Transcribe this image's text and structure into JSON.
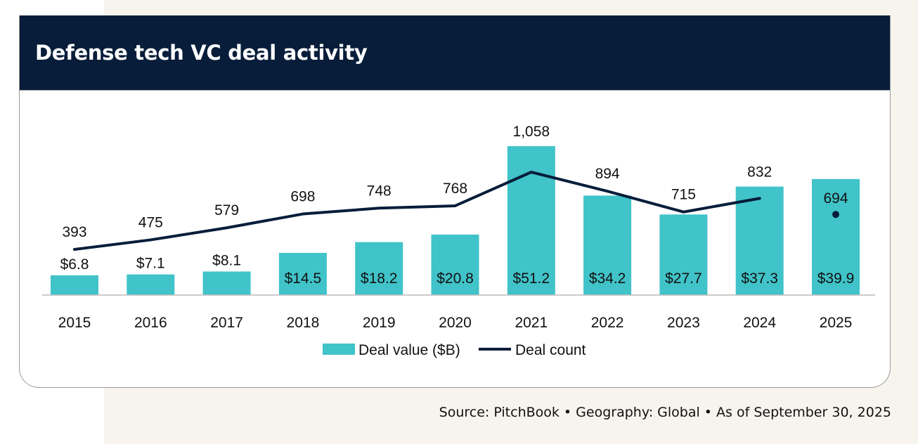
{
  "source_text": "Source: PitchBook  •  Geography: Global  •  As of September 30, 2025",
  "colors": {
    "bar": "#40C3C9",
    "line": "#071D3A",
    "header": "#071D3A",
    "background": "#F7F4EE"
  },
  "chart_data": {
    "type": "bar+line",
    "title": "Defense tech VC deal activity",
    "categories": [
      "2015",
      "2016",
      "2017",
      "2018",
      "2019",
      "2020",
      "2021",
      "2022",
      "2023",
      "2024",
      "2025"
    ],
    "series": [
      {
        "name": "Deal value ($B)",
        "type": "bar",
        "values": [
          6.8,
          7.1,
          8.1,
          14.5,
          18.2,
          20.8,
          51.2,
          34.2,
          27.7,
          37.3,
          39.9
        ],
        "labels": [
          "$6.8",
          "$7.1",
          "$8.1",
          "$14.5",
          "$18.2",
          "$20.8",
          "$51.2",
          "$34.2",
          "$27.7",
          "$37.3",
          "$39.9"
        ]
      },
      {
        "name": "Deal count",
        "type": "line",
        "values": [
          393,
          475,
          579,
          698,
          748,
          768,
          1058,
          894,
          715,
          832,
          694
        ],
        "labels": [
          "393",
          "475",
          "579",
          "698",
          "748",
          "768",
          "1,058",
          "894",
          "715",
          "832",
          "694"
        ]
      }
    ],
    "legend": "bottom-center",
    "grid": false
  }
}
